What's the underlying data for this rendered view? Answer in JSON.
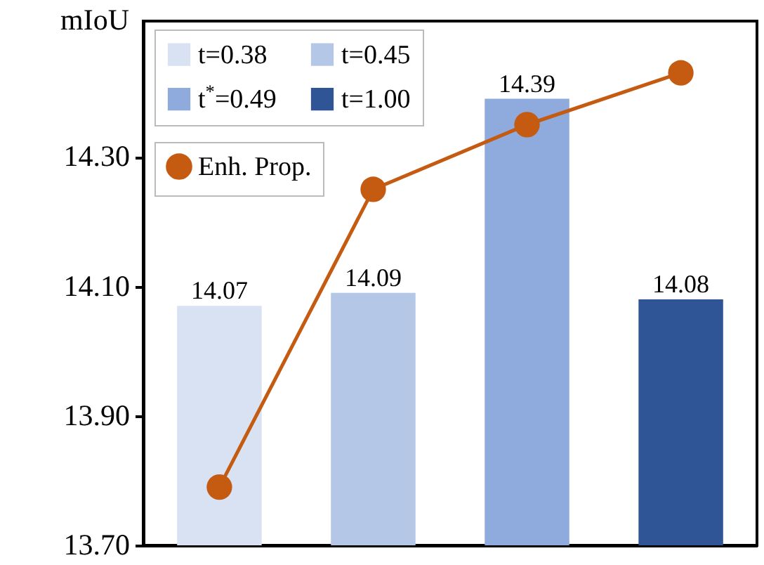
{
  "chart_data": {
    "type": "bar",
    "ylabel": "mIoU",
    "categories": [
      null,
      null,
      null,
      null
    ],
    "series": [
      {
        "name": "t=0.38",
        "color": "#d9e2f3",
        "values": [
          14.07,
          null,
          null,
          null
        ],
        "value_labels": [
          "14.07",
          null,
          null,
          null
        ]
      },
      {
        "name": "t=0.45",
        "color": "#b4c7e7",
        "values": [
          null,
          14.09,
          null,
          null
        ],
        "value_labels": [
          null,
          "14.09",
          null,
          null
        ]
      },
      {
        "name": "t$^{*}$=0.49",
        "color": "#8faadc",
        "values": [
          null,
          null,
          14.39,
          null
        ],
        "value_labels": [
          null,
          null,
          "14.39",
          null
        ]
      },
      {
        "name": "t=1.00",
        "color": "#2f5597",
        "values": [
          null,
          null,
          null,
          14.08
        ],
        "value_labels": [
          null,
          null,
          null,
          "14.08"
        ]
      },
      {
        "name": "Enh. Prop.",
        "type": "line",
        "color": "#c55a11",
        "values": [
          13.79,
          14.25,
          14.35,
          14.43
        ],
        "marker": "circle",
        "line_style": "solid"
      }
    ],
    "ylim": [
      13.7,
      14.51
    ],
    "yticks": [
      {
        "value": 13.7,
        "label": "13.70"
      },
      {
        "value": 13.9,
        "label": "13.90"
      },
      {
        "value": 14.1,
        "label": "14.10"
      },
      {
        "value": 14.3,
        "label": "14.30"
      }
    ],
    "tick_labels": "y",
    "grid": false,
    "legend": "top left"
  }
}
